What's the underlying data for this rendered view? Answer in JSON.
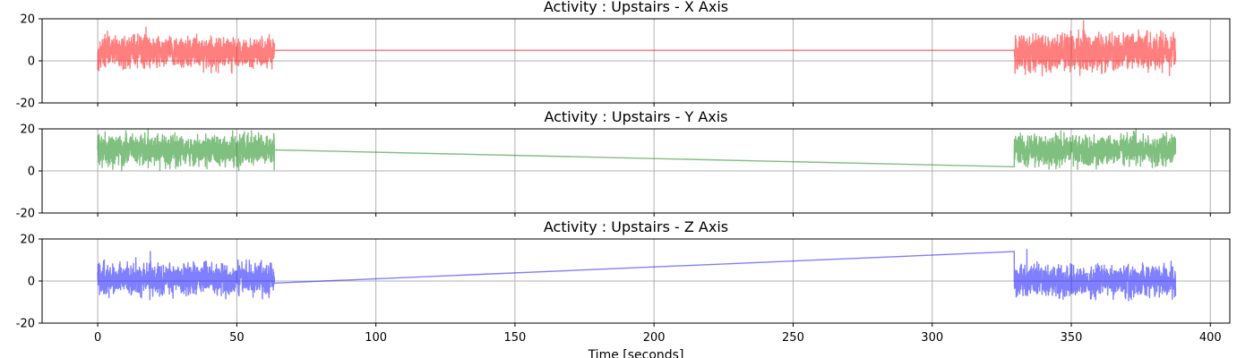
{
  "chart_data": [
    {
      "type": "line",
      "title": "Activity : Upstairs - X Axis",
      "xlabel": "",
      "ylabel": "",
      "xlim": [
        -20,
        407
      ],
      "ylim": [
        -20,
        20
      ],
      "xticks": [
        0,
        50,
        100,
        150,
        200,
        250,
        300,
        350,
        400
      ],
      "yticks": [
        -20,
        0,
        20
      ],
      "grid": true,
      "color": "#ff0000",
      "opacity": 0.5,
      "series": [
        {
          "segments": [
            {
              "start": 0,
              "end": 63.5,
              "mean": 4,
              "amp": 5,
              "peak": 16
            },
            {
              "start": 329.5,
              "end": 387.5,
              "mean": 4,
              "amp": 6,
              "peak": 19
            }
          ],
          "connector": [
            [
              63.5,
              5
            ],
            [
              329.5,
              5
            ]
          ]
        }
      ]
    },
    {
      "type": "line",
      "title": "Activity : Upstairs - Y Axis",
      "xlabel": "",
      "ylabel": "",
      "xlim": [
        -20,
        407
      ],
      "ylim": [
        -20,
        20
      ],
      "xticks": [
        0,
        50,
        100,
        150,
        200,
        250,
        300,
        350,
        400
      ],
      "yticks": [
        -20,
        0,
        20
      ],
      "grid": true,
      "color": "#008000",
      "opacity": 0.5,
      "series": [
        {
          "segments": [
            {
              "start": 0,
              "end": 63.5,
              "mean": 10,
              "amp": 5,
              "peak": 20
            },
            {
              "start": 329.5,
              "end": 387.5,
              "mean": 10,
              "amp": 5,
              "peak": 20
            }
          ],
          "connector": [
            [
              63.5,
              10
            ],
            [
              329.5,
              2
            ]
          ]
        }
      ]
    },
    {
      "type": "line",
      "title": "Activity : Upstairs - Z Axis",
      "xlabel": "Time [seconds]",
      "ylabel": "",
      "xlim": [
        -20,
        407
      ],
      "ylim": [
        -20,
        20
      ],
      "xticks": [
        0,
        50,
        100,
        150,
        200,
        250,
        300,
        350,
        400
      ],
      "yticks": [
        -20,
        0,
        20
      ],
      "grid": true,
      "color": "#0000ff",
      "opacity": 0.5,
      "series": [
        {
          "segments": [
            {
              "start": 0,
              "end": 63.5,
              "mean": 1,
              "amp": 5,
              "peak": 14
            },
            {
              "start": 329.5,
              "end": 387.5,
              "mean": 0,
              "amp": 5,
              "peak": 15
            }
          ],
          "connector": [
            [
              63.5,
              -1
            ],
            [
              329.5,
              14
            ]
          ]
        }
      ]
    }
  ]
}
